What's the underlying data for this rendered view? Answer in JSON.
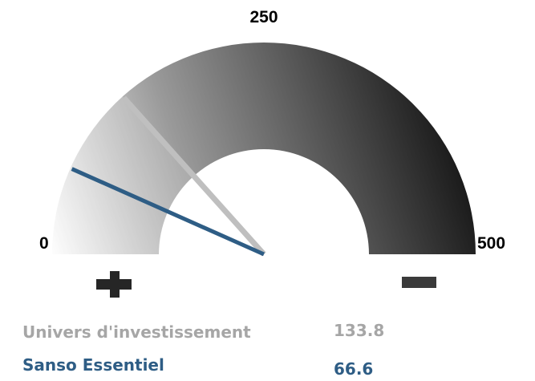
{
  "chart_data": {
    "type": "gauge",
    "min": 0,
    "mid": 250,
    "max": 500,
    "tick_labels": [
      "0",
      "250",
      "500"
    ],
    "plus_symbol": "plus-icon",
    "minus_symbol": "minus-icon",
    "series": [
      {
        "name": "Univers d'investissement",
        "value": 133.8,
        "value_label": "133.8",
        "color": "#a6a6a6",
        "needle_color": "#bfbfbf"
      },
      {
        "name": "Sanso Essentiel",
        "value": 66.6,
        "value_label": "66.6",
        "color": "#2e5d85",
        "needle_color": "#2e5d85"
      }
    ],
    "colors": {
      "band_light": "#ffffff",
      "band_dark": "#0d0d0d"
    }
  }
}
